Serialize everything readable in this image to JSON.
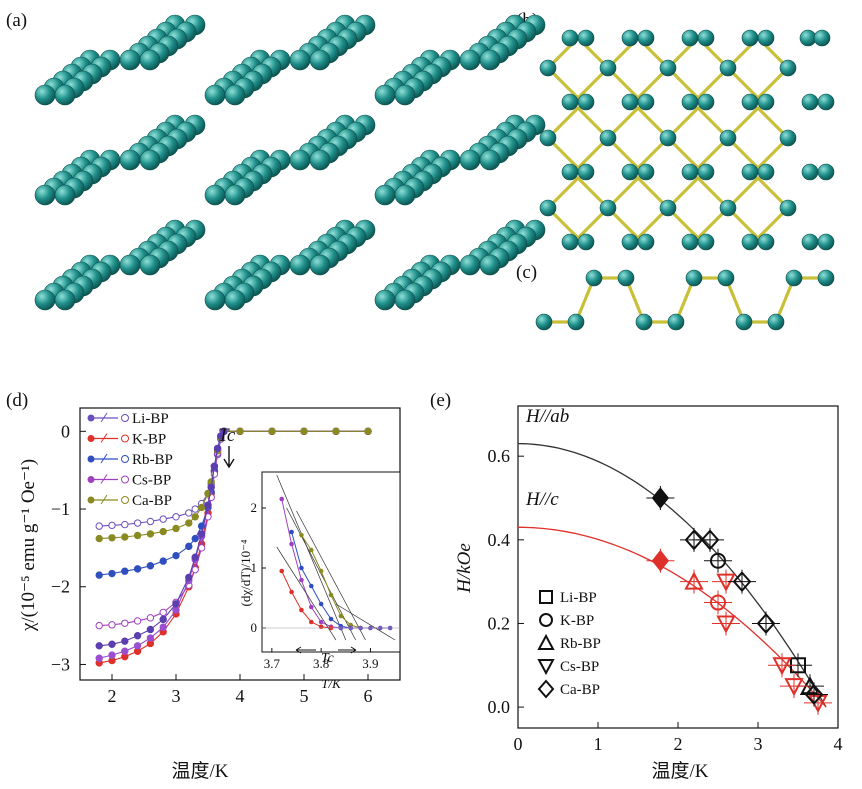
{
  "panel_labels": [
    "(a)",
    "(b)",
    "(c)",
    "(d)",
    "(e)"
  ],
  "colors": {
    "atom": "#1f8f8a",
    "atom_highlight": "#8fe0d8",
    "bond": "#c9c03a",
    "axis": "#111111",
    "grid_box": "#555555"
  },
  "chart_data": [
    {
      "type": "scatter",
      "panel": "(d)",
      "xlabel": "温度/K",
      "ylabel": "χ/(10⁻⁵ emu g⁻¹ Oe⁻¹)",
      "xlim": [
        1.5,
        6.5
      ],
      "ylim": [
        -3.2,
        0.3
      ],
      "xticks": [
        2,
        3,
        4,
        5,
        6
      ],
      "yticks": [
        0,
        -1,
        -2,
        -3
      ],
      "annotation": "Tc",
      "legend_position": "top-left",
      "series": [
        {
          "name": "Li-BP",
          "color": "#6a4fc0",
          "marker": "circle-open",
          "x": [
            1.8,
            2.0,
            2.2,
            2.4,
            2.6,
            2.8,
            3.0,
            3.2,
            3.3,
            3.4,
            3.5,
            3.55,
            3.6,
            3.65,
            3.7,
            3.75,
            4.0,
            4.5,
            5.0,
            5.5,
            6.0
          ],
          "y": [
            -1.22,
            -1.21,
            -1.2,
            -1.18,
            -1.16,
            -1.13,
            -1.1,
            -1.05,
            -1.0,
            -0.93,
            -0.8,
            -0.68,
            -0.5,
            -0.3,
            -0.1,
            0.0,
            0.0,
            0.0,
            0.0,
            0.0,
            0.0
          ]
        },
        {
          "name": "K-BP",
          "color": "#e0302a",
          "marker": "circle-filled",
          "x": [
            1.8,
            2.0,
            2.2,
            2.4,
            2.6,
            2.8,
            3.0,
            3.2,
            3.3,
            3.4,
            3.5,
            3.55,
            3.6,
            3.65,
            3.7,
            3.75,
            4.0,
            4.5,
            5.0,
            5.5,
            6.0
          ],
          "y": [
            -2.98,
            -2.95,
            -2.9,
            -2.83,
            -2.73,
            -2.58,
            -2.35,
            -2.0,
            -1.75,
            -1.45,
            -1.05,
            -0.8,
            -0.5,
            -0.25,
            -0.08,
            0.0,
            0.0,
            0.0,
            0.0,
            0.0,
            0.0
          ]
        },
        {
          "name": "Rb-BP",
          "color": "#2f4fbf",
          "marker": "circle-filled",
          "x": [
            1.8,
            2.0,
            2.2,
            2.4,
            2.6,
            2.8,
            3.0,
            3.2,
            3.3,
            3.4,
            3.5,
            3.55,
            3.6,
            3.65,
            3.7,
            3.75,
            4.0,
            4.5,
            5.0,
            5.5,
            6.0
          ],
          "y": [
            -1.85,
            -1.83,
            -1.8,
            -1.77,
            -1.73,
            -1.67,
            -1.6,
            -1.48,
            -1.38,
            -1.22,
            -0.98,
            -0.78,
            -0.52,
            -0.28,
            -0.08,
            0.0,
            0.0,
            0.0,
            0.0,
            0.0,
            0.0
          ]
        },
        {
          "name": "Cs-BP",
          "color": "#a040c0",
          "marker": "circle-open",
          "x": [
            1.8,
            2.0,
            2.2,
            2.4,
            2.6,
            2.8,
            3.0,
            3.2,
            3.3,
            3.4,
            3.5,
            3.55,
            3.6,
            3.65,
            3.7,
            3.75,
            4.0,
            4.5,
            5.0,
            5.5,
            6.0
          ],
          "y": [
            -2.5,
            -2.49,
            -2.47,
            -2.44,
            -2.4,
            -2.33,
            -2.2,
            -1.98,
            -1.78,
            -1.5,
            -1.1,
            -0.85,
            -0.55,
            -0.28,
            -0.08,
            0.0,
            0.0,
            0.0,
            0.0,
            0.0,
            0.0
          ]
        },
        {
          "name": "Ca-BP",
          "color": "#8a8a22",
          "marker": "circle-filled",
          "x": [
            1.8,
            2.0,
            2.2,
            2.4,
            2.6,
            2.8,
            3.0,
            3.2,
            3.3,
            3.4,
            3.5,
            3.55,
            3.6,
            3.65,
            3.7,
            3.75,
            4.0,
            4.5,
            5.0,
            5.5,
            6.0
          ],
          "y": [
            -1.38,
            -1.37,
            -1.36,
            -1.34,
            -1.32,
            -1.29,
            -1.25,
            -1.18,
            -1.1,
            -0.98,
            -0.8,
            -0.65,
            -0.45,
            -0.25,
            -0.08,
            0.0,
            0.0,
            0.0,
            0.0,
            0.0,
            0.0
          ]
        },
        {
          "name": "",
          "color": "#9a4fd0",
          "marker": "circle-filled",
          "x": [
            1.8,
            2.0,
            2.2,
            2.4,
            2.6,
            2.8,
            3.0,
            3.2,
            3.3,
            3.4,
            3.5,
            3.55,
            3.6,
            3.65,
            3.7,
            3.75
          ],
          "y": [
            -2.92,
            -2.88,
            -2.83,
            -2.76,
            -2.66,
            -2.52,
            -2.3,
            -1.92,
            -1.65,
            -1.35,
            -0.95,
            -0.72,
            -0.45,
            -0.22,
            -0.06,
            0.0
          ]
        },
        {
          "name": "",
          "color": "#5b3fb0",
          "marker": "circle-filled",
          "x": [
            1.8,
            2.0,
            2.2,
            2.4,
            2.6,
            2.8,
            3.0,
            3.2,
            3.3,
            3.4,
            3.5,
            3.55,
            3.6,
            3.65,
            3.7,
            3.75
          ],
          "y": [
            -2.76,
            -2.74,
            -2.7,
            -2.63,
            -2.55,
            -2.42,
            -2.22,
            -1.88,
            -1.62,
            -1.32,
            -0.95,
            -0.72,
            -0.45,
            -0.22,
            -0.06,
            0.0
          ]
        }
      ],
      "inset": {
        "xlabel": "T/K",
        "ylabel": "(dχ/dT)/10⁻⁴",
        "xlim": [
          3.68,
          3.96
        ],
        "ylim": [
          -0.4,
          2.6
        ],
        "xticks": [
          3.7,
          3.8,
          3.9
        ],
        "yticks": [
          0,
          1,
          2
        ],
        "annotation": "Tc",
        "series": [
          {
            "color": "#a040c0",
            "x": [
              3.72,
              3.74,
              3.76,
              3.78,
              3.8,
              3.82,
              3.84
            ],
            "y": [
              2.15,
              1.4,
              0.8,
              0.35,
              0.1,
              0.02,
              0.0
            ]
          },
          {
            "color": "#2f4fbf",
            "x": [
              3.74,
              3.76,
              3.78,
              3.8,
              3.82,
              3.84,
              3.86
            ],
            "y": [
              1.6,
              1.0,
              0.7,
              0.4,
              0.15,
              0.03,
              0.0
            ]
          },
          {
            "color": "#8a8a22",
            "x": [
              3.76,
              3.78,
              3.8,
              3.82,
              3.84,
              3.86,
              3.88
            ],
            "y": [
              1.55,
              1.3,
              0.95,
              0.55,
              0.2,
              0.05,
              0.0
            ]
          },
          {
            "color": "#e0302a",
            "x": [
              3.72,
              3.74,
              3.76,
              3.78,
              3.8,
              3.82
            ],
            "y": [
              0.95,
              0.6,
              0.3,
              0.1,
              0.02,
              0.0
            ]
          },
          {
            "color": "#6a4fc0",
            "x": [
              3.84,
              3.86,
              3.88,
              3.9,
              3.92,
              3.94
            ],
            "y": [
              0.0,
              0.0,
              0.0,
              0.0,
              0.0,
              0.0
            ]
          }
        ]
      }
    },
    {
      "type": "scatter",
      "panel": "(e)",
      "xlabel": "温度/K",
      "ylabel": "H/kOe",
      "xlim": [
        0,
        4
      ],
      "ylim": [
        -0.05,
        0.72
      ],
      "xticks": [
        0,
        1,
        2,
        3,
        4
      ],
      "yticks": [
        0.0,
        0.2,
        0.4,
        0.6
      ],
      "legend_position": "bottom-left",
      "curves": [
        {
          "label": "H//ab",
          "color": "#333333",
          "H0": 0.63,
          "Tc": 3.85
        },
        {
          "label": "H//c",
          "color": "#e0302a",
          "H0": 0.43,
          "Tc": 3.85
        }
      ],
      "series": [
        {
          "name": "Li-BP",
          "marker": "square",
          "points": [
            {
              "x": 3.5,
              "y": 0.1,
              "color": "#111111"
            }
          ]
        },
        {
          "name": "K-BP",
          "marker": "circle",
          "points": [
            {
              "x": 2.5,
              "y": 0.35,
              "color": "#111111"
            },
            {
              "x": 2.5,
              "y": 0.25,
              "color": "#e0302a"
            }
          ]
        },
        {
          "name": "Rb-BP",
          "marker": "triangle-up",
          "points": [
            {
              "x": 3.65,
              "y": 0.05,
              "color": "#111111"
            },
            {
              "x": 2.2,
              "y": 0.3,
              "color": "#e0302a"
            }
          ]
        },
        {
          "name": "Cs-BP",
          "marker": "triangle-down",
          "points": [
            {
              "x": 2.6,
              "y": 0.3,
              "color": "#e0302a"
            },
            {
              "x": 2.6,
              "y": 0.2,
              "color": "#e0302a"
            },
            {
              "x": 3.3,
              "y": 0.1,
              "color": "#e0302a"
            },
            {
              "x": 3.45,
              "y": 0.05,
              "color": "#e0302a"
            },
            {
              "x": 3.75,
              "y": 0.01,
              "color": "#e0302a"
            }
          ]
        },
        {
          "name": "Ca-BP",
          "marker": "diamond",
          "points": [
            {
              "x": 2.2,
              "y": 0.4,
              "color": "#111111"
            },
            {
              "x": 2.4,
              "y": 0.4,
              "color": "#111111"
            },
            {
              "x": 2.8,
              "y": 0.3,
              "color": "#111111"
            },
            {
              "x": 3.1,
              "y": 0.2,
              "color": "#111111"
            },
            {
              "x": 3.7,
              "y": 0.03,
              "color": "#111111"
            }
          ]
        },
        {
          "name": "",
          "marker": "filled-diamond",
          "points": [
            {
              "x": 1.78,
              "y": 0.5,
              "color": "#111111"
            },
            {
              "x": 1.78,
              "y": 0.35,
              "color": "#e0302a"
            }
          ]
        }
      ]
    }
  ]
}
